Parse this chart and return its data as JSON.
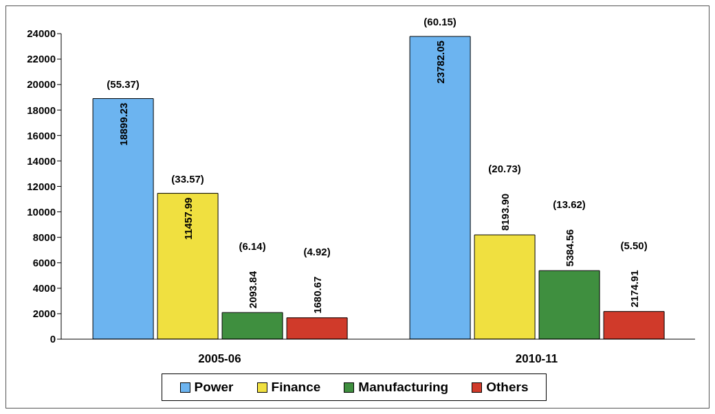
{
  "chart_data": {
    "type": "bar",
    "categories": [
      "2005-06",
      "2010-11"
    ],
    "series": [
      {
        "name": "Power",
        "color": "#6cb4f0",
        "values": [
          18899.23,
          23782.05
        ],
        "value_labels": [
          "18899.23",
          "23782.05"
        ]
      },
      {
        "name": "Finance",
        "color": "#f0e040",
        "values": [
          11457.99,
          8193.9
        ],
        "value_labels": [
          "11457.99",
          "8193.90"
        ]
      },
      {
        "name": "Manufacturing",
        "color": "#3f8f3f",
        "values": [
          2093.84,
          5384.56
        ],
        "value_labels": [
          "2093.84",
          "5384.56"
        ]
      },
      {
        "name": "Others",
        "color": "#d03a2a",
        "values": [
          1680.67,
          2174.91
        ],
        "value_labels": [
          "1680.67",
          "2174.91"
        ]
      }
    ],
    "annotations": [
      "(55.37)",
      "(33.57)",
      "(6.14)",
      "(4.92)",
      "(60.15)",
      "(20.73)",
      "(13.62)",
      "(5.50)"
    ],
    "ylim": [
      0,
      24000
    ],
    "yticks": [
      0,
      2000,
      4000,
      6000,
      8000,
      10000,
      12000,
      14000,
      16000,
      18000,
      20000,
      22000,
      24000
    ],
    "grid": false,
    "legend": "bottom"
  }
}
